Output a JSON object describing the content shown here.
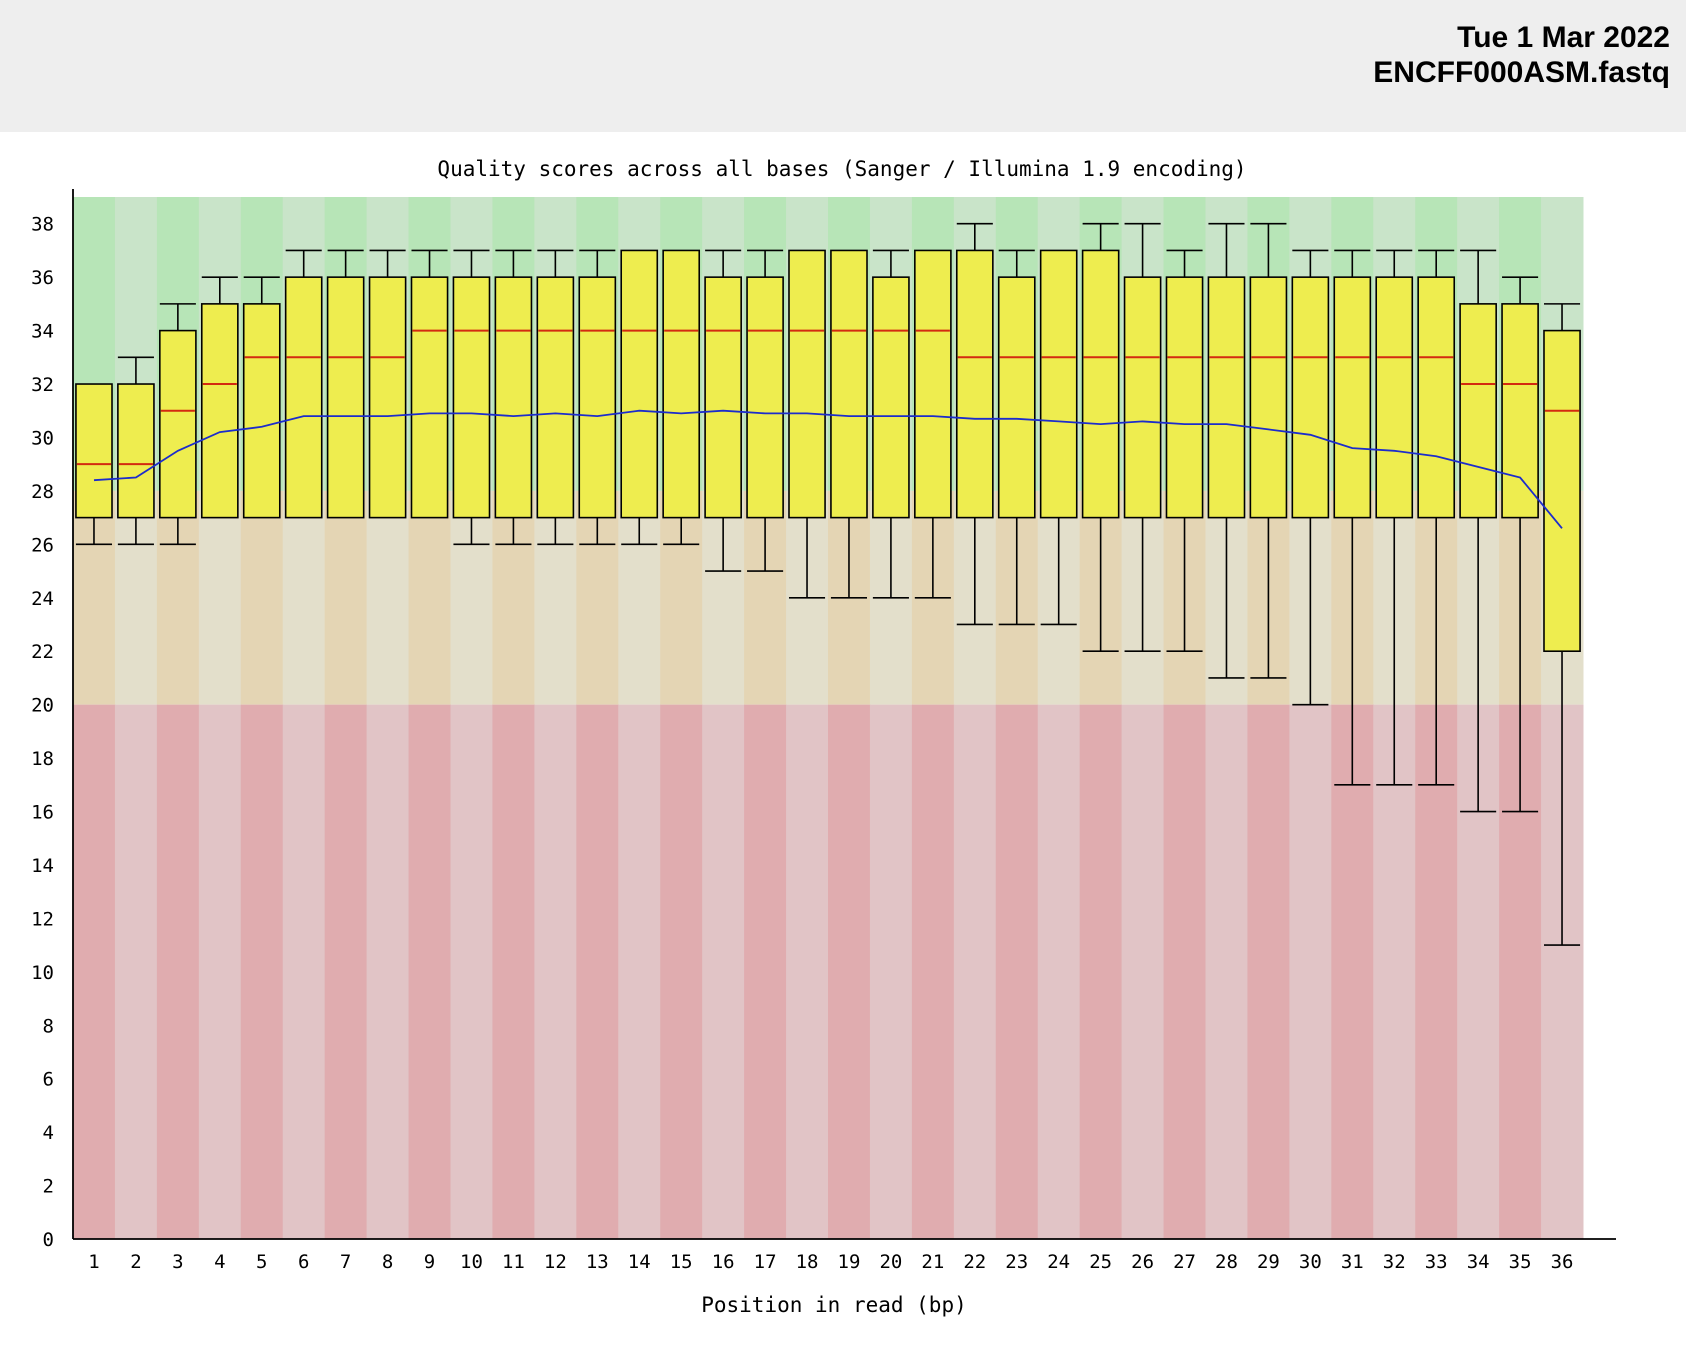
{
  "header": {
    "date": "Tue 1 Mar 2022",
    "filename": "ENCFF000ASM.fastq"
  },
  "colors": {
    "good_dark": "#b7e5b7",
    "good_light": "#c9e4c9",
    "ok_dark": "#e4d5b4",
    "ok_light": "#e3dfcb",
    "poor_dark": "#e0acaf",
    "poor_light": "#e1c4c6",
    "box_fill": "#eeed4f",
    "median": "#d32a10",
    "mean": "#1c2ccc"
  },
  "chart_data": {
    "type": "box",
    "title": "Quality scores across all bases (Sanger / Illumina 1.9 encoding)",
    "xlabel": "Position in read (bp)",
    "ylabel": "",
    "ylim": [
      0,
      39
    ],
    "yticks": [
      0,
      2,
      4,
      6,
      8,
      10,
      12,
      14,
      16,
      18,
      20,
      22,
      24,
      26,
      28,
      30,
      32,
      34,
      36,
      38
    ],
    "bands": [
      {
        "from": 28,
        "to": 39,
        "zone": "good"
      },
      {
        "from": 20,
        "to": 28,
        "zone": "ok"
      },
      {
        "from": 0,
        "to": 20,
        "zone": "poor"
      }
    ],
    "categories": [
      "1",
      "2",
      "3",
      "4",
      "5",
      "6",
      "7",
      "8",
      "9",
      "10",
      "11",
      "12",
      "13",
      "14",
      "15",
      "16",
      "17",
      "18",
      "19",
      "20",
      "21",
      "22",
      "23",
      "24",
      "25",
      "26",
      "27",
      "28",
      "29",
      "30",
      "31",
      "32",
      "33",
      "34",
      "35",
      "36"
    ],
    "whisker_low": [
      26,
      26,
      26,
      27,
      27,
      27,
      27,
      27,
      27,
      26,
      26,
      26,
      26,
      26,
      26,
      25,
      25,
      24,
      24,
      24,
      24,
      23,
      23,
      23,
      22,
      22,
      22,
      21,
      21,
      20,
      17,
      17,
      17,
      16,
      16,
      11
    ],
    "q1": [
      27,
      27,
      27,
      27,
      27,
      27,
      27,
      27,
      27,
      27,
      27,
      27,
      27,
      27,
      27,
      27,
      27,
      27,
      27,
      27,
      27,
      27,
      27,
      27,
      27,
      27,
      27,
      27,
      27,
      27,
      27,
      27,
      27,
      27,
      27,
      22
    ],
    "median": [
      29,
      29,
      31,
      32,
      33,
      33,
      33,
      33,
      34,
      34,
      34,
      34,
      34,
      34,
      34,
      34,
      34,
      34,
      34,
      34,
      34,
      33,
      33,
      33,
      33,
      33,
      33,
      33,
      33,
      33,
      33,
      33,
      33,
      32,
      32,
      31
    ],
    "q3": [
      32,
      32,
      34,
      35,
      35,
      36,
      36,
      36,
      36,
      36,
      36,
      36,
      36,
      37,
      37,
      36,
      36,
      37,
      37,
      36,
      37,
      37,
      36,
      37,
      37,
      36,
      36,
      36,
      36,
      36,
      36,
      36,
      36,
      35,
      35,
      34
    ],
    "whisker_high": [
      32,
      33,
      35,
      36,
      36,
      37,
      37,
      37,
      37,
      37,
      37,
      37,
      37,
      37,
      37,
      37,
      37,
      37,
      37,
      37,
      37,
      38,
      37,
      37,
      38,
      38,
      37,
      38,
      38,
      37,
      37,
      37,
      37,
      37,
      36,
      35
    ],
    "mean": [
      28.4,
      28.5,
      29.5,
      30.2,
      30.4,
      30.8,
      30.8,
      30.8,
      30.9,
      30.9,
      30.8,
      30.9,
      30.8,
      31.0,
      30.9,
      31.0,
      30.9,
      30.9,
      30.8,
      30.8,
      30.8,
      30.7,
      30.7,
      30.6,
      30.5,
      30.6,
      30.5,
      30.5,
      30.3,
      30.1,
      29.6,
      29.5,
      29.3,
      28.9,
      28.5,
      26.6
    ]
  }
}
